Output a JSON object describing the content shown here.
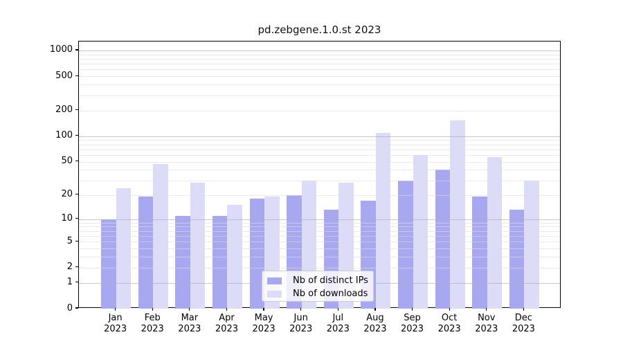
{
  "figure": {
    "title": "pd.zebgene.1.0.st 2023"
  },
  "legend": {
    "position": "lower center",
    "items": [
      {
        "label": "Nb of distinct IPs",
        "color": "#a8a8f0"
      },
      {
        "label": "Nb of downloads",
        "color": "#dcdcf8"
      }
    ]
  },
  "chart_data": {
    "type": "bar",
    "title": "pd.zebgene.1.0.st 2023",
    "categories": [
      "Jan 2023",
      "Feb 2023",
      "Mar 2023",
      "Apr 2023",
      "May 2023",
      "Jun 2023",
      "Jul 2023",
      "Aug 2023",
      "Sep 2023",
      "Oct 2023",
      "Nov 2023",
      "Dec 2023"
    ],
    "months": [
      "Jan",
      "Feb",
      "Mar",
      "Apr",
      "May",
      "Jun",
      "Jul",
      "Aug",
      "Sep",
      "Oct",
      "Nov",
      "Dec"
    ],
    "year": "2023",
    "series": [
      {
        "name": "Nb of distinct IPs",
        "color": "#a8a8f0",
        "values": [
          10,
          19,
          11,
          11,
          18,
          20,
          13,
          17,
          30,
          40,
          19,
          13
        ]
      },
      {
        "name": "Nb of downloads",
        "color": "#dcdcf8",
        "values": [
          24,
          47,
          28,
          15,
          19,
          30,
          28,
          110,
          60,
          152,
          57,
          30
        ]
      }
    ],
    "xlabel": "",
    "ylabel": "",
    "yscale": "log1p",
    "ylim": [
      0,
      1270
    ],
    "y_tick_values": [
      0,
      1,
      2,
      5,
      10,
      20,
      50,
      100,
      200,
      500,
      1000
    ],
    "grid": {
      "shown": true,
      "major_values": [
        1,
        10,
        100,
        1000
      ],
      "minor_subs": [
        2,
        3,
        4,
        5,
        6,
        7,
        8,
        9
      ],
      "minor_decades": [
        1,
        10,
        100
      ]
    }
  }
}
